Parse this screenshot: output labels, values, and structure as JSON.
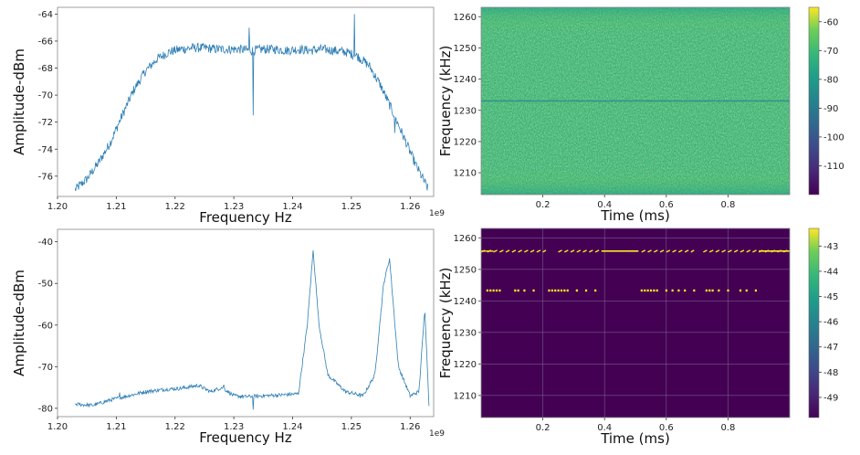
{
  "chart_data": [
    {
      "type": "line",
      "panel": "top-left",
      "xlabel": "Frequency Hz",
      "ylabel": "Amplitude-dBm",
      "x_offset_label": "1e9",
      "xlim": [
        1.2,
        1.264
      ],
      "ylim": [
        -77.5,
        -63.5
      ],
      "xticks": [
        "1.20",
        "1.21",
        "1.22",
        "1.23",
        "1.24",
        "1.25",
        "1.26"
      ],
      "yticks": [
        "-64",
        "-66",
        "-68",
        "-70",
        "-72",
        "-74",
        "-76"
      ],
      "color": "#2f7fb5",
      "series": [
        {
          "x": [
            1.203,
            1.205,
            1.207,
            1.209,
            1.211,
            1.213,
            1.215,
            1.217,
            1.219,
            1.221,
            1.223,
            1.225,
            1.227,
            1.229,
            1.231,
            1.233,
            1.235,
            1.237,
            1.239,
            1.241,
            1.243,
            1.245,
            1.247,
            1.249,
            1.251,
            1.253,
            1.255,
            1.257,
            1.259,
            1.261,
            1.263
          ],
          "y": [
            -77,
            -76.2,
            -75,
            -73.5,
            -71.5,
            -69.6,
            -68.2,
            -67.3,
            -66.8,
            -66.6,
            -66.5,
            -66.5,
            -66.6,
            -66.6,
            -66.6,
            -66.7,
            -66.6,
            -66.6,
            -66.7,
            -66.6,
            -66.7,
            -66.6,
            -66.7,
            -66.8,
            -67.1,
            -67.8,
            -69.3,
            -71.2,
            -73.2,
            -75.2,
            -76.9
          ]
        }
      ],
      "spikes": [
        {
          "x": 1.2333,
          "y": -71.5
        },
        {
          "x": 1.2326,
          "y": -65.0
        },
        {
          "x": 1.2505,
          "y": -64.0
        },
        {
          "x": 1.2574,
          "y": -72.8
        }
      ]
    },
    {
      "type": "heatmap",
      "panel": "top-right",
      "xlabel": "Time (ms)",
      "ylabel": "Frequency (kHz)",
      "xlim": [
        0,
        1.0
      ],
      "ylim": [
        1203,
        1263
      ],
      "xticks": [
        "0.2",
        "0.4",
        "0.6",
        "0.8"
      ],
      "yticks": [
        "1210",
        "1220",
        "1230",
        "1240",
        "1250",
        "1260"
      ],
      "colormap": "viridis",
      "colorbar_range": [
        -120,
        -55
      ],
      "colorbar_ticks": [
        "-60",
        "-70",
        "-80",
        "-90",
        "-100",
        "-110"
      ],
      "line_frequency_khz": 1233
    },
    {
      "type": "line",
      "panel": "bottom-left",
      "xlabel": "Frequency Hz",
      "ylabel": "Amplitude-dBm",
      "x_offset_label": "1e9",
      "xlim": [
        1.2,
        1.264
      ],
      "ylim": [
        -82,
        -37
      ],
      "xticks": [
        "1.20",
        "1.21",
        "1.22",
        "1.23",
        "1.24",
        "1.25",
        "1.26"
      ],
      "yticks": [
        "-40",
        "-50",
        "-60",
        "-70",
        "-80"
      ],
      "color": "#2f7fb5",
      "series": [
        {
          "x": [
            1.203,
            1.206,
            1.209,
            1.212,
            1.215,
            1.218,
            1.221,
            1.224,
            1.226,
            1.228,
            1.23,
            1.232,
            1.235,
            1.238,
            1.241,
            1.2425,
            1.2435,
            1.2445,
            1.246,
            1.249,
            1.252,
            1.254,
            1.2555,
            1.2565,
            1.258,
            1.26,
            1.2615,
            1.2625,
            1.2632
          ],
          "y": [
            -79,
            -79.3,
            -78,
            -77,
            -76,
            -75.5,
            -75.2,
            -74.5,
            -76,
            -75,
            -77,
            -77.2,
            -77,
            -76.8,
            -76.5,
            -60,
            -42,
            -60,
            -72,
            -76,
            -77,
            -72,
            -50,
            -44,
            -70,
            -77,
            -76,
            -56,
            -79
          ]
        }
      ],
      "spikes": [
        {
          "x": 1.2333,
          "y": -80.3
        },
        {
          "x": 1.2106,
          "y": -76.2
        },
        {
          "x": 1.2283,
          "y": -74.5
        }
      ]
    },
    {
      "type": "heatmap",
      "panel": "bottom-right",
      "xlabel": "Time (ms)",
      "ylabel": "Frequency (kHz)",
      "xlim": [
        0,
        1.0
      ],
      "ylim": [
        1203,
        1263
      ],
      "xticks": [
        "0.2",
        "0.4",
        "0.6",
        "0.8"
      ],
      "yticks": [
        "1210",
        "1220",
        "1230",
        "1240",
        "1250",
        "1260"
      ],
      "colormap": "viridis",
      "colorbar_range": [
        -49.8,
        -42.3
      ],
      "colorbar_ticks": [
        "-43",
        "-44",
        "-45",
        "-46",
        "-47",
        "-48",
        "-49"
      ],
      "background_color": "#440154",
      "grid": true,
      "tone_lines": [
        {
          "freq_khz": 1255.8,
          "segments": [
            [
              0.0,
              0.21
            ],
            [
              0.25,
              0.39
            ],
            [
              0.52,
              0.69
            ],
            [
              0.72,
              1.0
            ]
          ],
          "solid_from": [
            0.39,
            0.51
          ]
        },
        {
          "freq_khz": 1243.3,
          "dots_t": [
            0.02,
            0.03,
            0.04,
            0.05,
            0.06,
            0.11,
            0.12,
            0.14,
            0.17,
            0.22,
            0.23,
            0.24,
            0.25,
            0.26,
            0.27,
            0.28,
            0.31,
            0.34,
            0.37,
            0.52,
            0.53,
            0.54,
            0.55,
            0.56,
            0.57,
            0.6,
            0.62,
            0.64,
            0.66,
            0.69,
            0.73,
            0.74,
            0.75,
            0.77,
            0.8,
            0.84,
            0.86,
            0.89
          ]
        }
      ],
      "tone_color": "#fde725"
    }
  ]
}
